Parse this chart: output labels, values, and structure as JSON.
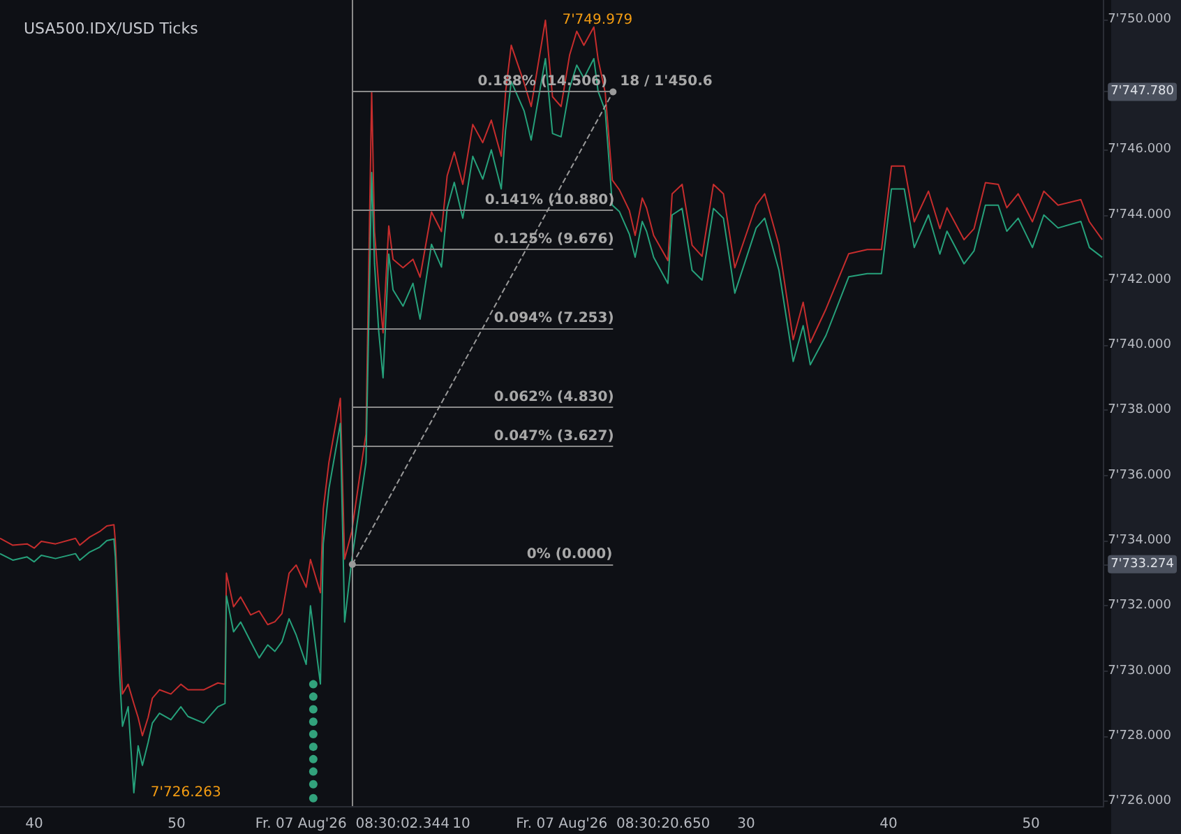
{
  "chart_data": {
    "type": "line",
    "title": "USA500.IDX/USD Ticks",
    "x": [
      "2026-08-07T08:29:37.6",
      "2026-08-07T08:29:38.5",
      "2026-08-07T08:29:39.5",
      "2026-08-07T08:29:40.0",
      "2026-08-07T08:29:40.5",
      "2026-08-07T08:29:41.5",
      "2026-08-07T08:29:42.9",
      "2026-08-07T08:29:43.2",
      "2026-08-07T08:29:43.9",
      "2026-08-07T08:29:44.6",
      "2026-08-07T08:29:45.1",
      "2026-08-07T08:29:45.6",
      "2026-08-07T08:29:45.7",
      "2026-08-07T08:29:46.0",
      "2026-08-07T08:29:46.2",
      "2026-08-07T08:29:46.6",
      "2026-08-07T08:29:47.0",
      "2026-08-07T08:29:47.3",
      "2026-08-07T08:29:47.6",
      "2026-08-07T08:29:48.0",
      "2026-08-07T08:29:48.3",
      "2026-08-07T08:29:48.8",
      "2026-08-07T08:29:49.6",
      "2026-08-07T08:29:50.3",
      "2026-08-07T08:29:50.8",
      "2026-08-07T08:29:51.9",
      "2026-08-07T08:29:52.9",
      "2026-08-07T08:29:53.4",
      "2026-08-07T08:29:53.5",
      "2026-08-07T08:29:54.0",
      "2026-08-07T08:29:54.5",
      "2026-08-07T08:29:55.2",
      "2026-08-07T08:29:55.8",
      "2026-08-07T08:29:56.4",
      "2026-08-07T08:29:56.9",
      "2026-08-07T08:29:57.4",
      "2026-08-07T08:29:57.9",
      "2026-08-07T08:29:58.4",
      "2026-08-07T08:29:59.1",
      "2026-08-07T08:29:59.4",
      "2026-08-07T08:30:00.1",
      "2026-08-07T08:30:00.3",
      "2026-08-07T08:30:00.7",
      "2026-08-07T08:30:01.5",
      "2026-08-07T08:30:01.8",
      "2026-08-07T08:30:02.3",
      "2026-08-07T08:30:03.0",
      "2026-08-07T08:30:03.3",
      "2026-08-07T08:30:03.7",
      "2026-08-07T08:30:03.9",
      "2026-08-07T08:30:04.2",
      "2026-08-07T08:30:04.5",
      "2026-08-07T08:30:04.9",
      "2026-08-07T08:30:05.2",
      "2026-08-07T08:30:05.9",
      "2026-08-07T08:30:06.6",
      "2026-08-07T08:30:07.1",
      "2026-08-07T08:30:07.9",
      "2026-08-07T08:30:08.6",
      "2026-08-07T08:30:09.0",
      "2026-08-07T08:30:09.5",
      "2026-08-07T08:30:10.1",
      "2026-08-07T08:30:10.8",
      "2026-08-07T08:30:11.5",
      "2026-08-07T08:30:12.1",
      "2026-08-07T08:30:12.8",
      "2026-08-07T08:30:13.1",
      "2026-08-07T08:30:13.5",
      "2026-08-07T08:30:14.4",
      "2026-08-07T08:30:14.9",
      "2026-08-07T08:30:15.9",
      "2026-08-07T08:30:16.4",
      "2026-08-07T08:30:17.0",
      "2026-08-07T08:30:17.6",
      "2026-08-07T08:30:18.1",
      "2026-08-07T08:30:18.6",
      "2026-08-07T08:30:19.3",
      "2026-08-07T08:30:19.6",
      "2026-08-07T08:30:20.1",
      "2026-08-07T08:30:20.6",
      "2026-08-07T08:30:21.1",
      "2026-08-07T08:30:21.8",
      "2026-08-07T08:30:22.2",
      "2026-08-07T08:30:22.7",
      "2026-08-07T08:30:23.0",
      "2026-08-07T08:30:23.5",
      "2026-08-07T08:30:24.5",
      "2026-08-07T08:30:24.8",
      "2026-08-07T08:30:25.5",
      "2026-08-07T08:30:26.2",
      "2026-08-07T08:30:26.9",
      "2026-08-07T08:30:27.7",
      "2026-08-07T08:30:28.4",
      "2026-08-07T08:30:29.2",
      "2026-08-07T08:30:30.7",
      "2026-08-07T08:30:31.3",
      "2026-08-07T08:30:32.3",
      "2026-08-07T08:30:33.3",
      "2026-08-07T08:30:34.0",
      "2026-08-07T08:30:34.5",
      "2026-08-07T08:30:35.6",
      "2026-08-07T08:30:37.2",
      "2026-08-07T08:30:38.5",
      "2026-08-07T08:30:39.5",
      "2026-08-07T08:30:40.2",
      "2026-08-07T08:30:41.1",
      "2026-08-07T08:30:41.8",
      "2026-08-07T08:30:42.8",
      "2026-08-07T08:30:43.6",
      "2026-08-07T08:30:44.1",
      "2026-08-07T08:30:45.3",
      "2026-08-07T08:30:46.0",
      "2026-08-07T08:30:46.8",
      "2026-08-07T08:30:47.7",
      "2026-08-07T08:30:48.3",
      "2026-08-07T08:30:49.1",
      "2026-08-07T08:30:50.1",
      "2026-08-07T08:30:50.9",
      "2026-08-07T08:30:51.9",
      "2026-08-07T08:30:53.5",
      "2026-08-07T08:30:54.1",
      "2026-08-07T08:30:55.0"
    ],
    "series": [
      {
        "color": "#c62d2d",
        "values": [
          7734.07,
          7733.86,
          7733.9,
          7733.77,
          7733.98,
          7733.9,
          7734.07,
          7733.86,
          7734.11,
          7734.28,
          7734.45,
          7734.49,
          7733.98,
          7731.0,
          7729.29,
          7729.59,
          7728.99,
          7728.57,
          7728.01,
          7728.57,
          7729.16,
          7729.42,
          7729.29,
          7729.59,
          7729.42,
          7729.42,
          7729.63,
          7729.59,
          7733.0,
          7731.97,
          7732.27,
          7731.72,
          7731.84,
          7731.42,
          7731.51,
          7731.76,
          7733.0,
          7733.25,
          7732.57,
          7733.42,
          7732.4,
          7734.96,
          7736.41,
          7738.37,
          7733.43,
          7734.28,
          7736.41,
          7737.27,
          7747.76,
          7743.49,
          7741.79,
          7740.38,
          7743.66,
          7742.64,
          7742.38,
          7742.64,
          7742.09,
          7744.09,
          7743.49,
          7745.2,
          7745.93,
          7744.94,
          7746.78,
          7746.22,
          7746.91,
          7745.8,
          7747.76,
          7749.21,
          7748.06,
          7747.33,
          7749.98,
          7747.63,
          7747.33,
          7748.91,
          7749.64,
          7749.21,
          7749.77,
          7748.78,
          7747.76,
          7745.07,
          7744.77,
          7744.13,
          7743.37,
          7744.52,
          7744.22,
          7743.37,
          7742.6,
          7744.65,
          7744.94,
          7743.07,
          7742.73,
          7744.94,
          7744.65,
          7742.38,
          7744.3,
          7744.65,
          7743.07,
          7740.17,
          7741.32,
          7740.08,
          7741.11,
          7742.81,
          7742.94,
          7742.94,
          7745.5,
          7745.5,
          7743.79,
          7744.73,
          7743.58,
          7744.22,
          7743.24,
          7743.58,
          7744.99,
          7744.94,
          7744.22,
          7744.65,
          7743.79,
          7744.73,
          7744.3,
          7744.47,
          7743.79,
          7743.24
        ]
      },
      {
        "color": "#26a17b",
        "values": [
          7733.6,
          7733.4,
          7733.5,
          7733.35,
          7733.55,
          7733.45,
          7733.6,
          7733.4,
          7733.65,
          7733.8,
          7734.0,
          7734.05,
          7733.5,
          7729.9,
          7728.3,
          7728.9,
          7726.26,
          7727.7,
          7727.1,
          7727.8,
          7728.4,
          7728.7,
          7728.5,
          7728.9,
          7728.6,
          7728.4,
          7728.9,
          7729.0,
          7732.3,
          7731.2,
          7731.5,
          7730.9,
          7730.4,
          7730.8,
          7730.6,
          7730.9,
          7731.6,
          7731.1,
          7730.2,
          7732.0,
          7729.6,
          7733.9,
          7735.6,
          7737.6,
          7731.5,
          7733.4,
          7735.5,
          7736.4,
          7745.3,
          7742.5,
          7740.4,
          7739.0,
          7742.8,
          7741.7,
          7741.2,
          7741.9,
          7740.8,
          7743.1,
          7742.4,
          7744.2,
          7745.0,
          7743.9,
          7745.8,
          7745.1,
          7746.0,
          7744.8,
          7746.6,
          7748.1,
          7747.2,
          7746.3,
          7748.8,
          7746.5,
          7746.4,
          7747.9,
          7748.6,
          7748.2,
          7748.8,
          7747.8,
          7747.2,
          7744.3,
          7744.1,
          7743.4,
          7742.7,
          7743.8,
          7743.5,
          7742.7,
          7741.9,
          7744.0,
          7744.2,
          7742.3,
          7742.0,
          7744.2,
          7743.9,
          7741.6,
          7743.6,
          7743.9,
          7742.3,
          7739.5,
          7740.6,
          7739.4,
          7740.3,
          7742.1,
          7742.2,
          7742.2,
          7744.8,
          7744.8,
          7743.0,
          7744.0,
          7742.8,
          7743.5,
          7742.5,
          7742.9,
          7744.3,
          7744.3,
          7743.5,
          7743.9,
          7743.0,
          7744.0,
          7743.6,
          7743.8,
          7743.0,
          7742.7
        ]
      },
      {
        "type": "line",
        "color": "#9a9a9a",
        "line_style": "dashed",
        "marker": "circle",
        "x": [
          "2026-08-07T08:30:02.344",
          "2026-08-07T08:30:20.65"
        ],
        "values": [
          7733.27,
          7747.78
        ]
      },
      {
        "type": "scatter",
        "color": "#3cc796",
        "x": [
          "2026-08-07T08:29:59.6",
          "2026-08-07T08:29:59.6",
          "2026-08-07T08:29:59.6",
          "2026-08-07T08:29:59.6",
          "2026-08-07T08:29:59.6",
          "2026-08-07T08:29:59.6",
          "2026-08-07T08:29:59.6",
          "2026-08-07T08:29:59.6",
          "2026-08-07T08:29:59.6",
          "2026-08-07T08:29:59.6"
        ],
        "values": [
          7729.59,
          7729.21,
          7728.82,
          7728.44,
          7728.06,
          7727.67,
          7727.29,
          7726.91,
          7726.52,
          7726.09
        ]
      }
    ],
    "xlim": [
      "2026-08-07T08:29:37.6",
      "2026-08-07T08:30:55.1"
    ],
    "xticks": [
      {
        "value": "2026-08-07T08:29:40",
        "label": "40"
      },
      {
        "value": "2026-08-07T08:29:50",
        "label": "50"
      },
      {
        "value": "2026-08-07T08:30:02.344",
        "label": "Fr. 07 Aug'26  08:30:02.344"
      },
      {
        "value": "2026-08-07T08:30:10",
        "label": "10"
      },
      {
        "value": "2026-08-07T08:30:20.65",
        "label": "Fr. 07 Aug'26  08:30:20.650"
      },
      {
        "value": "2026-08-07T08:30:30",
        "label": "30"
      },
      {
        "value": "2026-08-07T08:30:40",
        "label": "40"
      },
      {
        "value": "2026-08-07T08:30:50",
        "label": "50"
      }
    ],
    "ylim": [
      7725.85,
      7750.6
    ],
    "yticks": [
      {
        "value": 7726,
        "label": "7'726.000"
      },
      {
        "value": 7728,
        "label": "7'728.000"
      },
      {
        "value": 7730,
        "label": "7'730.000"
      },
      {
        "value": 7732,
        "label": "7'732.000"
      },
      {
        "value": 7734,
        "label": "7'734.000"
      },
      {
        "value": 7736,
        "label": "7'736.000"
      },
      {
        "value": 7738,
        "label": "7'738.000"
      },
      {
        "value": 7740,
        "label": "7'740.000"
      },
      {
        "value": 7742,
        "label": "7'742.000"
      },
      {
        "value": 7744,
        "label": "7'744.000"
      },
      {
        "value": 7746,
        "label": "7'746.000"
      },
      {
        "value": 7747.78,
        "label": "7'747.780"
      },
      {
        "value": 7750,
        "label": "7'750.000"
      },
      {
        "value": 7733.274,
        "label": "7'733.274"
      }
    ],
    "ref_lines": [
      {
        "axis": "x",
        "value": "2026-08-07T08:30:02.344",
        "color": "#8a8a8a"
      },
      {
        "axis": "y",
        "value": 7747.78,
        "color": "#8a8a8a"
      },
      {
        "axis": "y",
        "value": 7744.154,
        "color": "#8a8a8a"
      },
      {
        "axis": "y",
        "value": 7742.95,
        "color": "#8a8a8a"
      },
      {
        "axis": "y",
        "value": 7740.527,
        "color": "#8a8a8a"
      },
      {
        "axis": "y",
        "value": 7738.104,
        "color": "#8a8a8a"
      },
      {
        "axis": "y",
        "value": 7736.901,
        "color": "#8a8a8a"
      },
      {
        "axis": "y",
        "value": 7733.274,
        "color": "#8a8a8a"
      }
    ],
    "annotations": [
      {
        "text": "0.188% (14.506)",
        "x": "2026-08-07T08:30:15.7",
        "y": 7747.78
      },
      {
        "text": "0.141% (10.880)",
        "x": "2026-08-07T08:30:16.2",
        "y": 7744.154
      },
      {
        "text": "0.125% (9.676)",
        "x": "2026-08-07T08:30:16.5",
        "y": 7742.95
      },
      {
        "text": "0.094% (7.253)",
        "x": "2026-08-07T08:30:16.5",
        "y": 7740.527
      },
      {
        "text": "0.062% (4.830)",
        "x": "2026-08-07T08:30:16.5",
        "y": 7738.104
      },
      {
        "text": "0.047% (3.627)",
        "x": "2026-08-07T08:30:16.5",
        "y": 7736.901
      },
      {
        "text": "0% (0.000)",
        "x": "2026-08-07T08:30:17.6",
        "y": 7733.274
      },
      {
        "text": "18 / 1'450.6",
        "x": "2026-08-07T08:30:20.65",
        "y": 7747.78
      },
      {
        "text": "7'749.979",
        "x": "2026-08-07T08:30:15.9",
        "y": 7749.98
      },
      {
        "text": "7'726.263",
        "x": "2026-08-07T08:29:47.0",
        "y": 7726.26
      }
    ],
    "grid": false
  }
}
